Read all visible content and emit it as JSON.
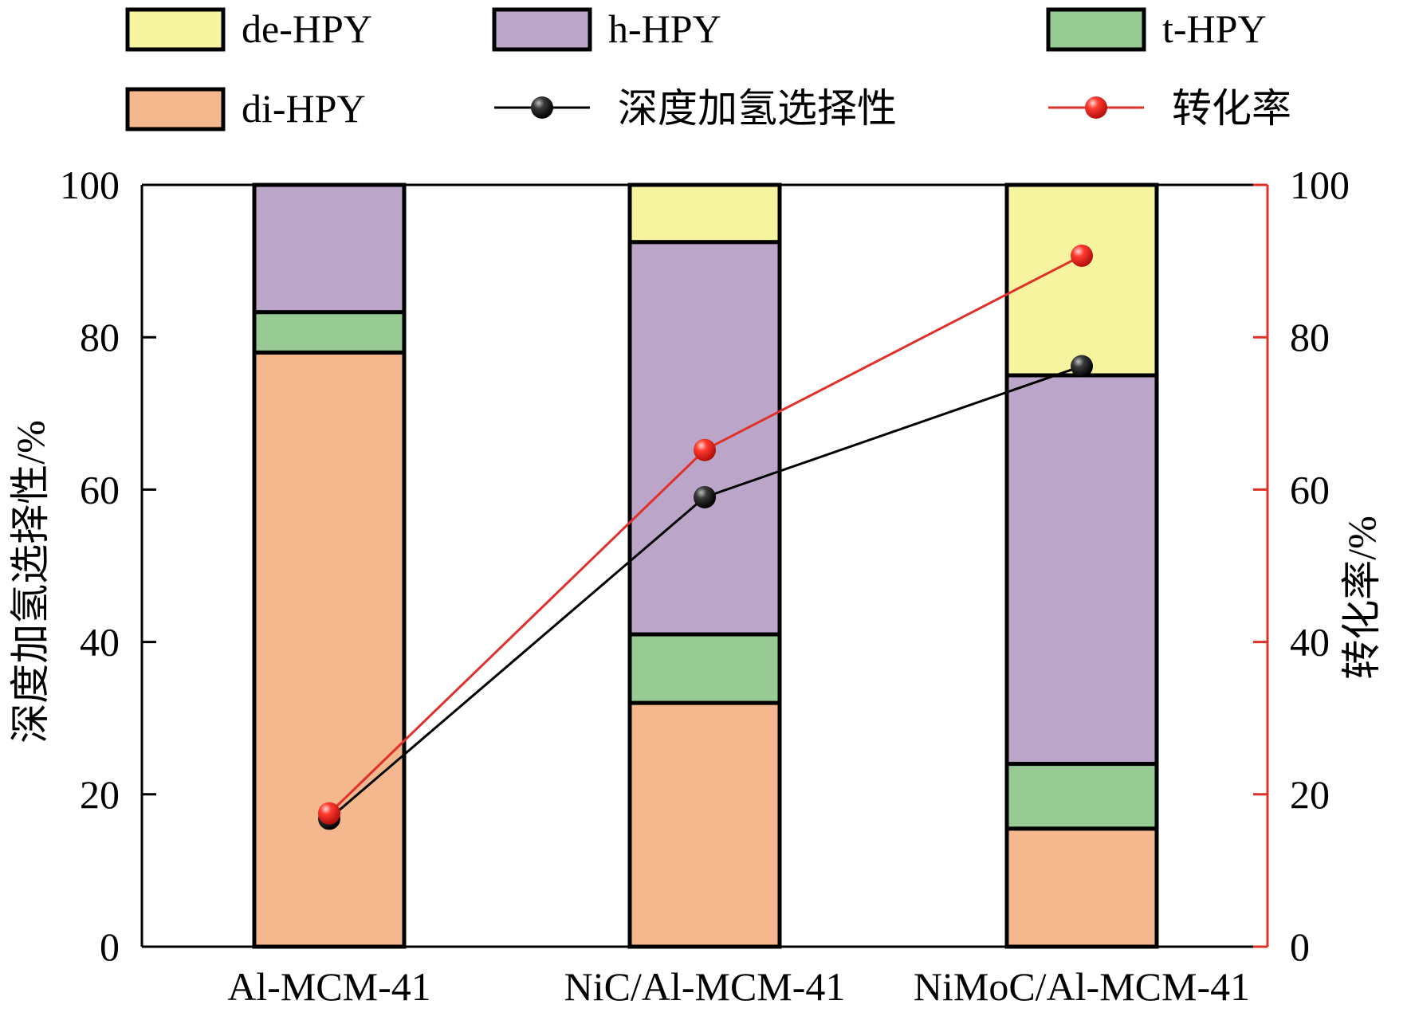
{
  "chart_data": {
    "type": "bar",
    "stacked": true,
    "categories": [
      "Al-MCM-41",
      "NiC/Al-MCM-41",
      "NiMoC/Al-MCM-41"
    ],
    "series": [
      {
        "name": "di-HPY",
        "color": "#F5B88E",
        "values": [
          78,
          32,
          15.5
        ]
      },
      {
        "name": "t-HPY",
        "color": "#98CB93",
        "values": [
          5.3,
          9,
          8.5
        ]
      },
      {
        "name": "h-HPY",
        "color": "#BBA6C9",
        "values": [
          16.7,
          51.5,
          51
        ]
      },
      {
        "name": "de-HPY",
        "color": "#F6F49E",
        "values": [
          0,
          7.5,
          25
        ]
      }
    ],
    "lines": [
      {
        "name": "深度加氢选择性",
        "color": "#000000",
        "values": [
          16.8,
          59,
          76.2
        ],
        "axis": "left"
      },
      {
        "name": "转化率",
        "color": "#E0302A",
        "values": [
          17.5,
          65.2,
          90.7
        ],
        "axis": "right"
      }
    ],
    "ylabel": "深度加氢选择性/%",
    "y2label": "转化率/%",
    "ylim": [
      0,
      100
    ],
    "y2lim": [
      0,
      100
    ],
    "yticks": [
      "0",
      "20",
      "40",
      "60",
      "80",
      "100"
    ],
    "y2ticks": [
      "0",
      "20",
      "40",
      "60",
      "80",
      "100"
    ],
    "right_axis_color": "#E0302A",
    "legend": {
      "placement": "top",
      "rows": [
        [
          "de-HPY",
          "h-HPY",
          "t-HPY"
        ],
        [
          "di-HPY",
          "深度加氢选择性",
          "转化率"
        ]
      ]
    }
  }
}
